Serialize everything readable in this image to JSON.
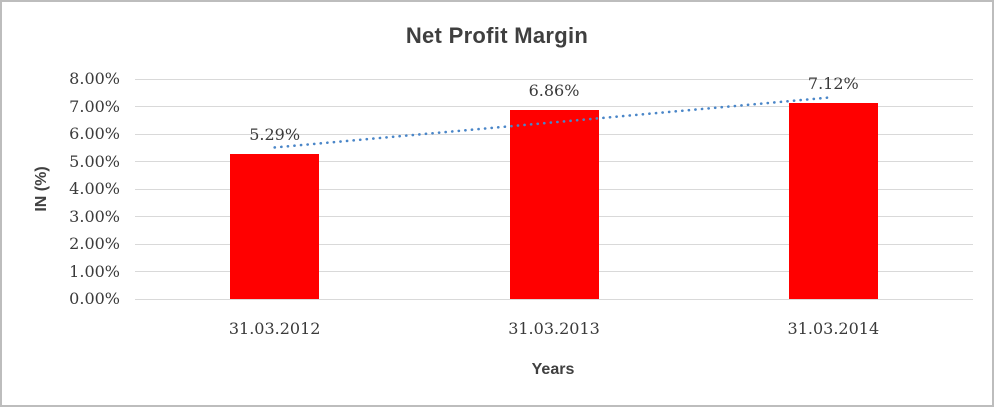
{
  "chart_data": {
    "type": "bar",
    "title": "Net Profit Margin",
    "xlabel": "Years",
    "ylabel": "IN (%)",
    "categories": [
      "31.03.2012",
      "31.03.2013",
      "31.03.2014"
    ],
    "values": [
      5.29,
      6.86,
      7.12
    ],
    "data_labels": [
      "5.29%",
      "6.86%",
      "7.12%"
    ],
    "y_ticks": [
      "0.00%",
      "1.00%",
      "2.00%",
      "3.00%",
      "4.00%",
      "5.00%",
      "6.00%",
      "7.00%",
      "8.00%"
    ],
    "ylim": [
      0,
      8
    ],
    "grid": "horizontal",
    "legend": "none",
    "bar_color": "#FF0000",
    "gridline_color": "#D9D9D9",
    "trendline": {
      "style": "dotted",
      "color": "#4A86C8",
      "start_value": 5.51,
      "end_value": 7.34
    }
  }
}
